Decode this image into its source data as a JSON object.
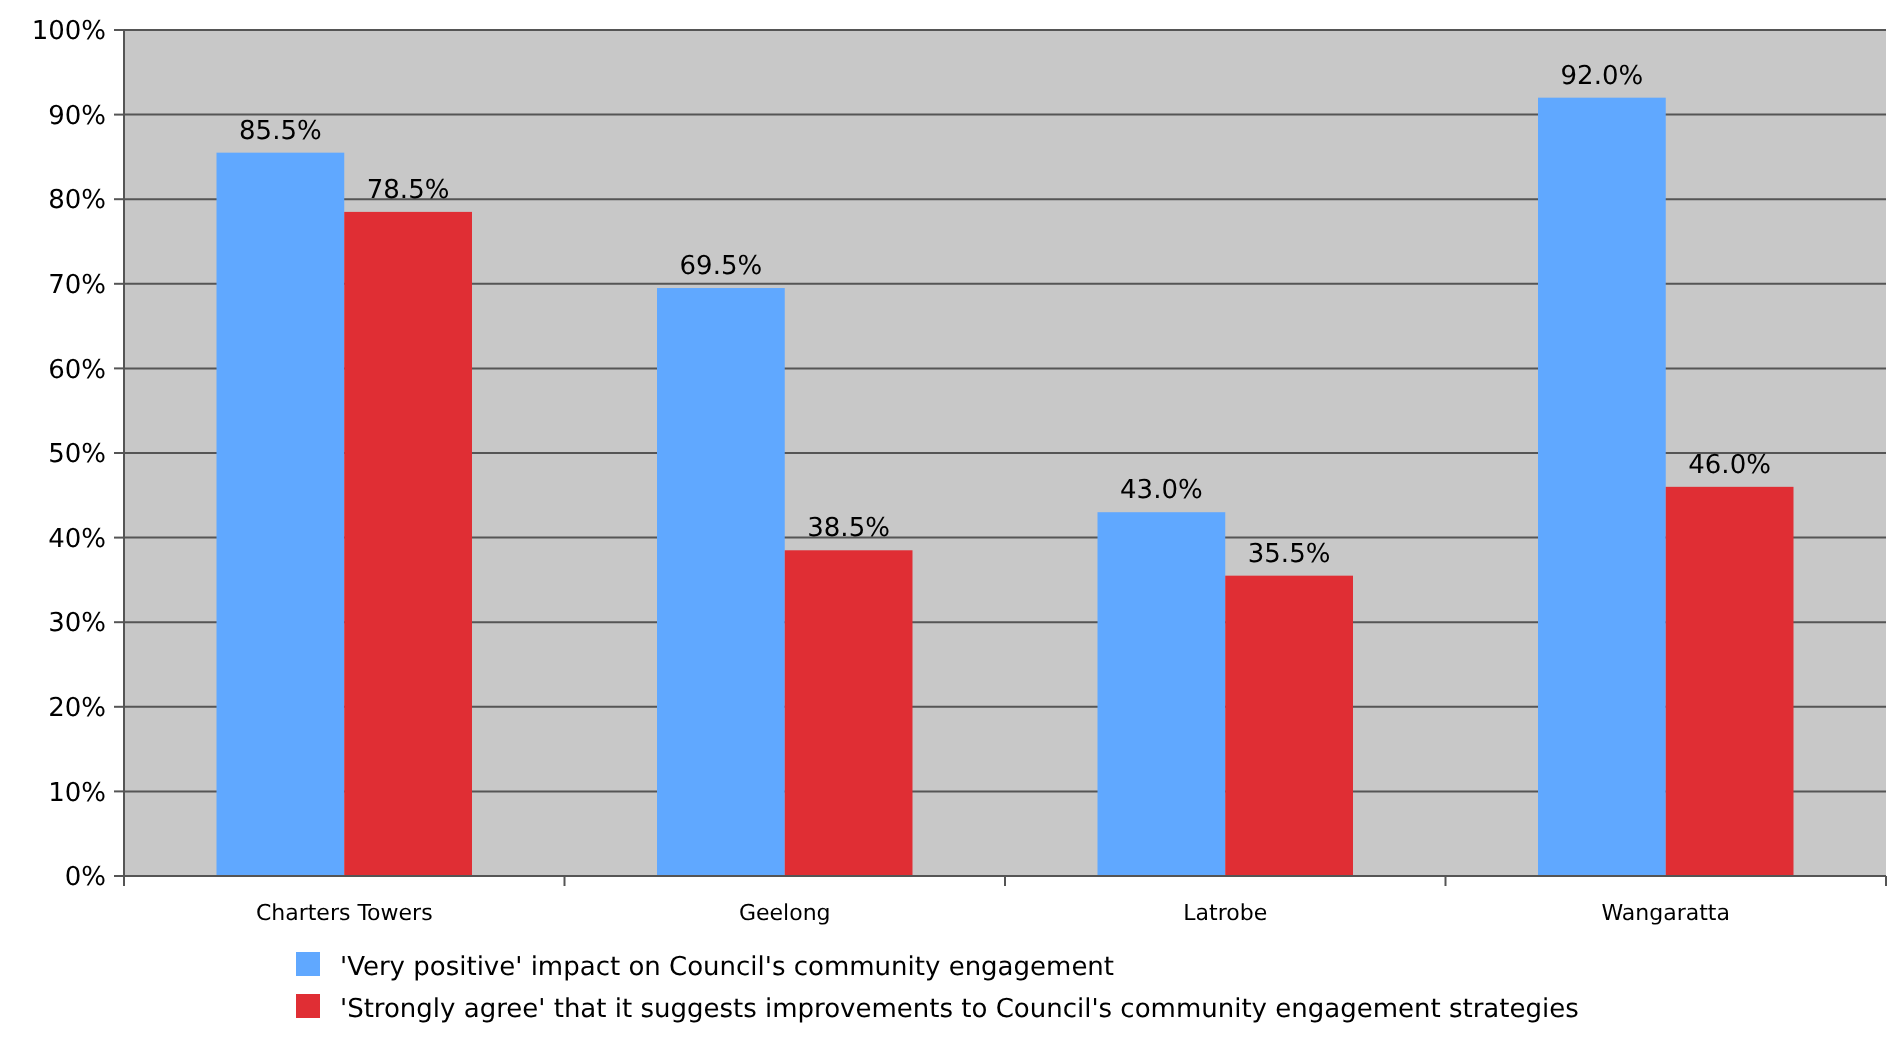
{
  "chart_data": {
    "type": "bar",
    "categories": [
      "Charters Towers",
      "Geelong",
      "Latrobe",
      "Wangaratta"
    ],
    "series": [
      {
        "name": "'Very positive' impact on Council's community engagement",
        "color": "#60a8ff",
        "values": [
          85.5,
          69.5,
          43.0,
          92.0
        ],
        "value_labels": [
          "85.5%",
          "69.5%",
          "43.0%",
          "92.0%"
        ]
      },
      {
        "name": "'Strongly agree' that it suggests improvements to Council's community engagement strategies",
        "color": "#e02e34",
        "values": [
          78.5,
          38.5,
          35.5,
          46.0
        ],
        "value_labels": [
          "78.5%",
          "38.5%",
          "35.5%",
          "46.0%"
        ]
      }
    ],
    "ylim": [
      0,
      100
    ],
    "yticks": [
      {
        "value": 0,
        "label": "0%"
      },
      {
        "value": 10,
        "label": "10%"
      },
      {
        "value": 20,
        "label": "20%"
      },
      {
        "value": 30,
        "label": "30%"
      },
      {
        "value": 40,
        "label": "40%"
      },
      {
        "value": 50,
        "label": "50%"
      },
      {
        "value": 60,
        "label": "60%"
      },
      {
        "value": 70,
        "label": "70%"
      },
      {
        "value": 80,
        "label": "80%"
      },
      {
        "value": 90,
        "label": "90%"
      },
      {
        "value": 100,
        "label": "100%"
      }
    ],
    "grid": "y",
    "legend": "bottom"
  }
}
